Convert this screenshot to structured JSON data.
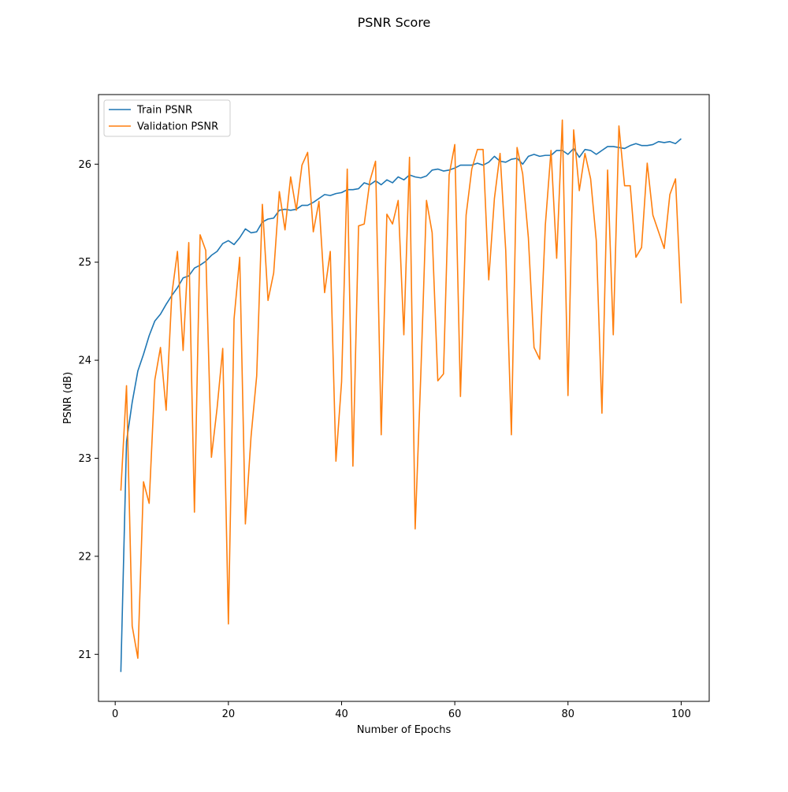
{
  "chart_data": {
    "type": "line",
    "title": "PSNR Score",
    "xlabel": "Number of Epochs",
    "ylabel": "PSNR (dB)",
    "xlim": [
      -2.95,
      104.95
    ],
    "ylim": [
      20.52,
      26.71
    ],
    "xticks": [
      0,
      20,
      40,
      60,
      80,
      100
    ],
    "yticks": [
      21,
      22,
      23,
      24,
      25,
      26
    ],
    "grid": false,
    "legend_position": "top-left",
    "x": [
      1,
      2,
      3,
      4,
      5,
      6,
      7,
      8,
      9,
      10,
      11,
      12,
      13,
      14,
      15,
      16,
      17,
      18,
      19,
      20,
      21,
      22,
      23,
      24,
      25,
      26,
      27,
      28,
      29,
      30,
      31,
      32,
      33,
      34,
      35,
      36,
      37,
      38,
      39,
      40,
      41,
      42,
      43,
      44,
      45,
      46,
      47,
      48,
      49,
      50,
      51,
      52,
      53,
      54,
      55,
      56,
      57,
      58,
      59,
      60,
      61,
      62,
      63,
      64,
      65,
      66,
      67,
      68,
      69,
      70,
      71,
      72,
      73,
      74,
      75,
      76,
      77,
      78,
      79,
      80,
      81,
      82,
      83,
      84,
      85,
      86,
      87,
      88,
      89,
      90,
      91,
      92,
      93,
      94,
      95,
      96,
      97,
      98,
      99,
      100
    ],
    "series": [
      {
        "name": "Train PSNR",
        "color": "#1f77b4",
        "values": [
          20.82,
          23.17,
          23.57,
          23.89,
          24.06,
          24.25,
          24.4,
          24.47,
          24.57,
          24.66,
          24.74,
          24.84,
          24.86,
          24.94,
          24.97,
          25.01,
          25.07,
          25.11,
          25.19,
          25.22,
          25.18,
          25.25,
          25.34,
          25.3,
          25.31,
          25.41,
          25.44,
          25.45,
          25.53,
          25.54,
          25.53,
          25.54,
          25.58,
          25.58,
          25.61,
          25.65,
          25.69,
          25.68,
          25.7,
          25.71,
          25.74,
          25.74,
          25.75,
          25.81,
          25.79,
          25.83,
          25.79,
          25.84,
          25.81,
          25.87,
          25.84,
          25.89,
          25.87,
          25.86,
          25.88,
          25.94,
          25.95,
          25.93,
          25.94,
          25.96,
          25.99,
          25.99,
          25.99,
          26.01,
          25.99,
          26.02,
          26.08,
          26.03,
          26.02,
          26.05,
          26.06,
          26.0,
          26.08,
          26.1,
          26.08,
          26.09,
          26.09,
          26.14,
          26.14,
          26.1,
          26.16,
          26.07,
          26.15,
          26.14,
          26.1,
          26.14,
          26.18,
          26.18,
          26.17,
          26.16,
          26.19,
          26.21,
          26.19,
          26.19,
          26.2,
          26.23,
          26.22,
          26.23,
          26.21,
          26.26
        ]
      },
      {
        "name": "Validation PSNR",
        "color": "#ff7f0e",
        "values": [
          22.67,
          23.74,
          21.29,
          20.96,
          22.76,
          22.54,
          23.8,
          24.13,
          23.49,
          24.67,
          25.11,
          24.1,
          25.2,
          22.45,
          25.28,
          25.12,
          23.01,
          23.51,
          24.12,
          21.31,
          24.42,
          25.05,
          22.33,
          23.22,
          23.84,
          25.59,
          24.61,
          24.89,
          25.72,
          25.33,
          25.87,
          25.53,
          25.99,
          26.12,
          25.31,
          25.62,
          24.69,
          25.11,
          22.97,
          23.78,
          25.95,
          22.92,
          25.37,
          25.39,
          25.83,
          26.03,
          23.24,
          25.49,
          25.39,
          25.63,
          24.26,
          26.07,
          22.28,
          23.86,
          25.63,
          25.3,
          23.79,
          23.86,
          25.89,
          26.2,
          23.63,
          25.48,
          25.95,
          26.15,
          26.15,
          24.82,
          25.65,
          26.11,
          25.12,
          23.24,
          26.17,
          25.9,
          25.25,
          24.13,
          24.01,
          25.38,
          26.14,
          25.04,
          26.45,
          23.64,
          26.35,
          25.73,
          26.11,
          25.85,
          25.22,
          23.46,
          25.94,
          24.26,
          26.39,
          25.78,
          25.78,
          25.05,
          25.15,
          26.01,
          25.48,
          25.31,
          25.14,
          25.69,
          25.85,
          24.58
        ]
      }
    ]
  }
}
